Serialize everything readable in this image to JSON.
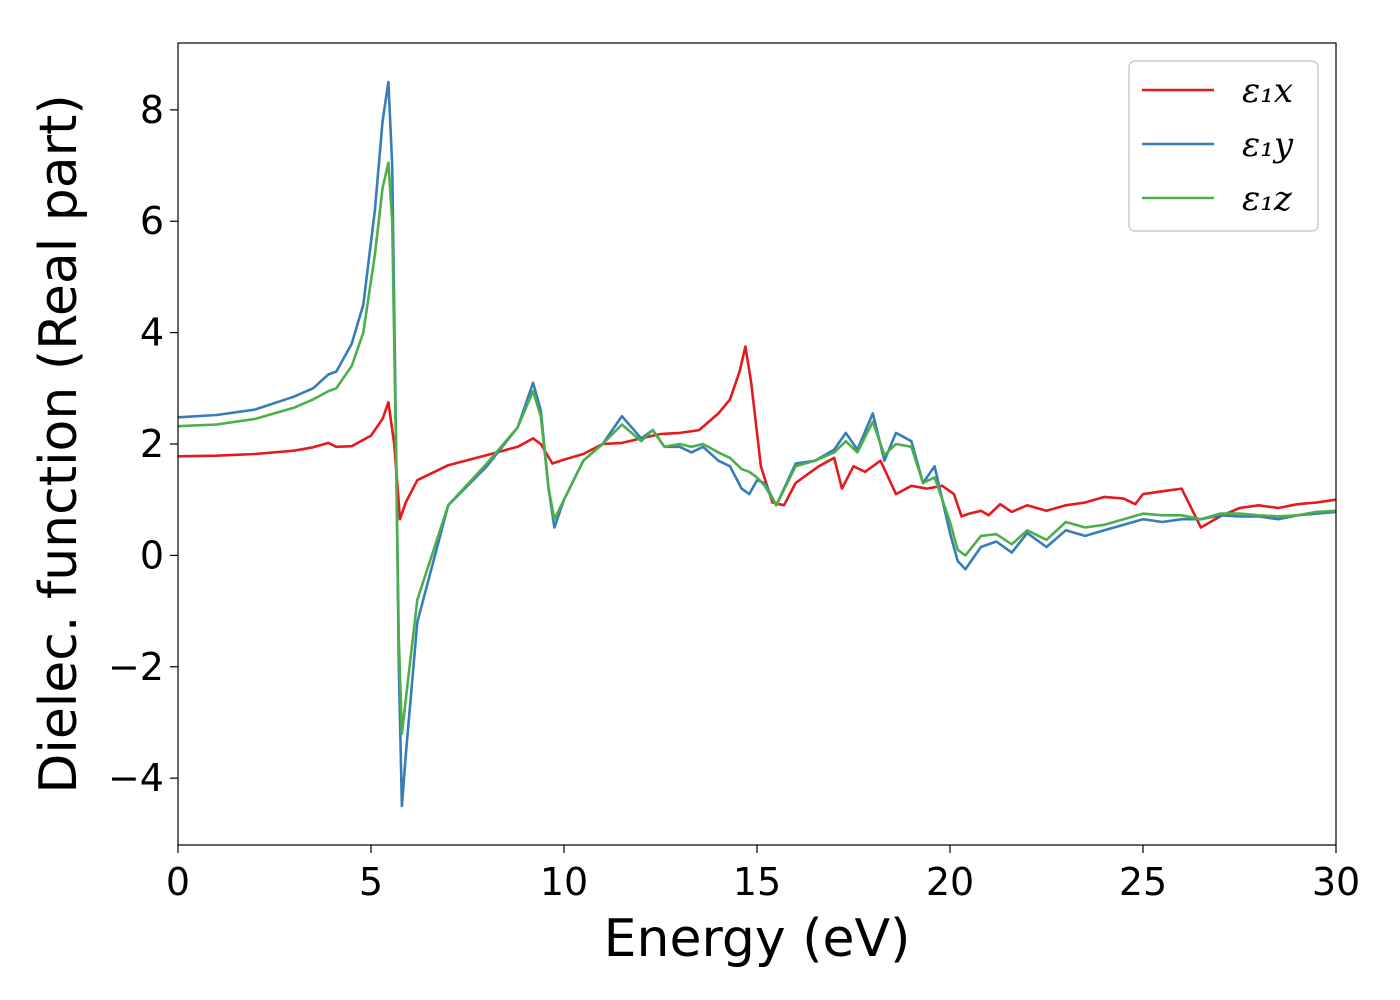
{
  "chart_data": {
    "type": "line",
    "title": "",
    "xlabel": "Energy (eV)",
    "ylabel": "Dielec. function (Real part)",
    "xlim": [
      0,
      30
    ],
    "ylim": [
      -5.2,
      9.2
    ],
    "xticks": [
      0,
      5,
      10,
      15,
      20,
      25,
      30
    ],
    "xtick_labels": [
      "0",
      "5",
      "10",
      "15",
      "20",
      "25",
      "30"
    ],
    "yticks": [
      -4,
      -2,
      0,
      2,
      4,
      6,
      8
    ],
    "ytick_labels": [
      "−4",
      "−2",
      "0",
      "2",
      "4",
      "6",
      "8"
    ],
    "grid": false,
    "legend": "top-right",
    "series": [
      {
        "name": "ε₁x",
        "color": "#e41a1c",
        "x": [
          0,
          1,
          2,
          3,
          3.5,
          3.9,
          4.1,
          4.5,
          5,
          5.3,
          5.45,
          5.6,
          5.75,
          5.9,
          6.2,
          7,
          8,
          8.8,
          9.2,
          9.4,
          9.7,
          10,
          10.5,
          11,
          11.5,
          12,
          12.5,
          13,
          13.5,
          14,
          14.3,
          14.55,
          14.7,
          14.85,
          15.1,
          15.4,
          15.7,
          16,
          16.3,
          16.6,
          17,
          17.2,
          17.5,
          17.8,
          18.2,
          18.6,
          19,
          19.4,
          19.8,
          20.1,
          20.3,
          20.5,
          20.8,
          21,
          21.3,
          21.6,
          22,
          22.5,
          23,
          23.5,
          24,
          24.5,
          24.8,
          25,
          25.5,
          26,
          26.5,
          27,
          27.5,
          28,
          28.5,
          29,
          29.5,
          30
        ],
        "y": [
          1.78,
          1.79,
          1.82,
          1.88,
          1.94,
          2.02,
          1.95,
          1.96,
          2.15,
          2.45,
          2.75,
          2.0,
          0.65,
          0.95,
          1.35,
          1.62,
          1.8,
          1.95,
          2.1,
          2.0,
          1.65,
          1.72,
          1.82,
          2.0,
          2.02,
          2.1,
          2.18,
          2.2,
          2.25,
          2.55,
          2.8,
          3.3,
          3.75,
          3.1,
          1.6,
          0.95,
          0.9,
          1.3,
          1.45,
          1.6,
          1.75,
          1.2,
          1.6,
          1.5,
          1.7,
          1.1,
          1.25,
          1.2,
          1.25,
          1.1,
          0.7,
          0.75,
          0.8,
          0.72,
          0.92,
          0.78,
          0.9,
          0.8,
          0.9,
          0.95,
          1.05,
          1.02,
          0.92,
          1.1,
          1.15,
          1.2,
          0.5,
          0.7,
          0.85,
          0.9,
          0.85,
          0.92,
          0.95,
          1.0
        ]
      },
      {
        "name": "ε₁y",
        "color": "#377eb8",
        "x": [
          0,
          1,
          2,
          3,
          3.5,
          3.9,
          4.1,
          4.5,
          4.8,
          5.1,
          5.3,
          5.45,
          5.55,
          5.65,
          5.72,
          5.8,
          5.9,
          6.2,
          7,
          8,
          8.8,
          9.2,
          9.4,
          9.6,
          9.75,
          10,
          10.5,
          11,
          11.5,
          12,
          12.3,
          12.6,
          13,
          13.3,
          13.6,
          14,
          14.3,
          14.6,
          14.8,
          15,
          15.2,
          15.5,
          16,
          16.5,
          17,
          17.3,
          17.6,
          18,
          18.3,
          18.6,
          19,
          19.3,
          19.6,
          20,
          20.2,
          20.4,
          20.8,
          21.2,
          21.6,
          22,
          22.5,
          23,
          23.5,
          24,
          24.5,
          25,
          25.5,
          26,
          26.5,
          27,
          27.5,
          28,
          28.5,
          29,
          29.5,
          30
        ],
        "y": [
          2.48,
          2.52,
          2.62,
          2.85,
          3.0,
          3.25,
          3.3,
          3.8,
          4.5,
          6.2,
          7.8,
          8.5,
          7.0,
          2.0,
          -2.0,
          -4.5,
          -3.6,
          -1.2,
          0.9,
          1.6,
          2.3,
          3.1,
          2.6,
          1.2,
          0.5,
          1.0,
          1.7,
          2.0,
          2.5,
          2.1,
          2.25,
          1.95,
          1.95,
          1.85,
          1.95,
          1.7,
          1.6,
          1.2,
          1.1,
          1.35,
          1.3,
          0.9,
          1.65,
          1.7,
          1.9,
          2.2,
          1.9,
          2.55,
          1.7,
          2.2,
          2.05,
          1.3,
          1.6,
          0.4,
          -0.1,
          -0.25,
          0.15,
          0.25,
          0.05,
          0.4,
          0.15,
          0.45,
          0.35,
          0.45,
          0.55,
          0.65,
          0.6,
          0.65,
          0.65,
          0.72,
          0.7,
          0.7,
          0.65,
          0.72,
          0.75,
          0.78
        ]
      },
      {
        "name": "ε₁z",
        "color": "#4daf4a",
        "x": [
          0,
          1,
          2,
          3,
          3.5,
          3.9,
          4.1,
          4.5,
          4.8,
          5.1,
          5.3,
          5.45,
          5.55,
          5.65,
          5.72,
          5.8,
          5.9,
          6.2,
          7,
          8,
          8.8,
          9.2,
          9.4,
          9.6,
          9.75,
          10,
          10.5,
          11,
          11.5,
          12,
          12.3,
          12.6,
          13,
          13.3,
          13.6,
          14,
          14.3,
          14.6,
          14.8,
          15,
          15.2,
          15.5,
          16,
          16.5,
          17,
          17.3,
          17.6,
          18,
          18.3,
          18.6,
          19,
          19.3,
          19.6,
          20,
          20.2,
          20.4,
          20.8,
          21.2,
          21.6,
          22,
          22.5,
          23,
          23.5,
          24,
          24.5,
          25,
          25.5,
          26,
          26.5,
          27,
          27.5,
          28,
          28.5,
          29,
          29.5,
          30
        ],
        "y": [
          2.32,
          2.35,
          2.45,
          2.65,
          2.8,
          2.95,
          3.0,
          3.4,
          4.0,
          5.4,
          6.6,
          7.05,
          6.0,
          1.8,
          -1.5,
          -3.2,
          -2.6,
          -0.8,
          0.9,
          1.65,
          2.3,
          2.95,
          2.5,
          1.2,
          0.65,
          1.0,
          1.7,
          2.0,
          2.35,
          2.05,
          2.25,
          1.95,
          2.0,
          1.95,
          2.0,
          1.85,
          1.75,
          1.55,
          1.5,
          1.4,
          1.25,
          0.9,
          1.6,
          1.7,
          1.85,
          2.05,
          1.85,
          2.4,
          1.8,
          2.0,
          1.95,
          1.3,
          1.4,
          0.6,
          0.1,
          0.0,
          0.35,
          0.38,
          0.2,
          0.45,
          0.28,
          0.6,
          0.5,
          0.55,
          0.65,
          0.75,
          0.72,
          0.72,
          0.65,
          0.75,
          0.75,
          0.72,
          0.7,
          0.72,
          0.78,
          0.8
        ]
      }
    ]
  }
}
